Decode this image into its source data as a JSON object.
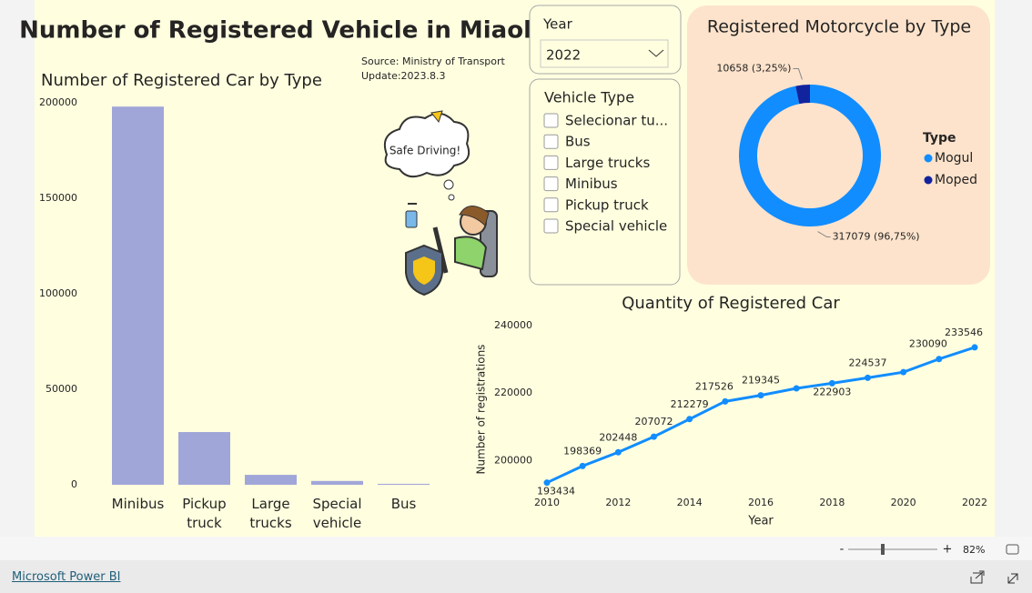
{
  "page": {
    "title": "Number of Registered Vehicle in Miaoli",
    "source": "Source: Ministry of Transport",
    "update": "Update:2023.8.3",
    "bubble": "Safe Driving!",
    "year_slicer": {
      "label": "Year",
      "value": "2022"
    },
    "vehicle_slicer": {
      "label": "Vehicle Type",
      "options": [
        "Selecionar tu...",
        "Bus",
        "Large trucks",
        "Minibus",
        "Pickup truck",
        "Special vehicle"
      ]
    },
    "zoom_minus": "-",
    "zoom_plus": "+",
    "zoom": "82%",
    "footer": "Microsoft Power BI"
  },
  "chart_data": [
    {
      "type": "bar",
      "title": "Number of Registered Car by Type",
      "categories": [
        "Minibus",
        "Pickup truck",
        "Large trucks",
        "Special vehicle",
        "Bus"
      ],
      "values": [
        198000,
        27600,
        5200,
        2000,
        500
      ],
      "color": "#a0a6d8",
      "ylim": [
        0,
        200000
      ],
      "yticks": [
        0,
        50000,
        100000,
        150000,
        200000
      ],
      "grid": false
    },
    {
      "type": "pie",
      "title": "Registered Motorcycle by Type",
      "legend_title": "Type",
      "categories": [
        "Mogul",
        "Moped"
      ],
      "values": [
        317079,
        10658
      ],
      "colors": [
        "#118dff",
        "#12239e"
      ],
      "value_labels": [
        "317079 (96,75%)",
        "10658 (3,25%)"
      ],
      "legend": "right"
    },
    {
      "type": "line",
      "title": "Quantity of Registered Car",
      "x_label": "Year",
      "y_label": "Number of registrations",
      "x": [
        2010,
        2011,
        2012,
        2013,
        2014,
        2015,
        2016,
        2017,
        2018,
        2019,
        2020,
        2021,
        2022
      ],
      "values": [
        193434,
        198369,
        202448,
        207072,
        212279,
        217526,
        219345,
        221400,
        222903,
        224537,
        226200,
        230090,
        233546
      ],
      "value_labels": [
        "193434",
        "198369",
        "202448",
        "207072",
        "212279",
        "217526",
        "219345",
        null,
        "222903",
        "224537",
        null,
        "230090",
        "233546"
      ],
      "color": "#118dff",
      "xlim": [
        2010,
        2022
      ],
      "xticks": [
        2010,
        2012,
        2014,
        2016,
        2018,
        2020,
        2022
      ],
      "ylim": [
        192000,
        240000
      ],
      "yticks": [
        200000,
        220000,
        240000
      ],
      "grid": false
    }
  ]
}
